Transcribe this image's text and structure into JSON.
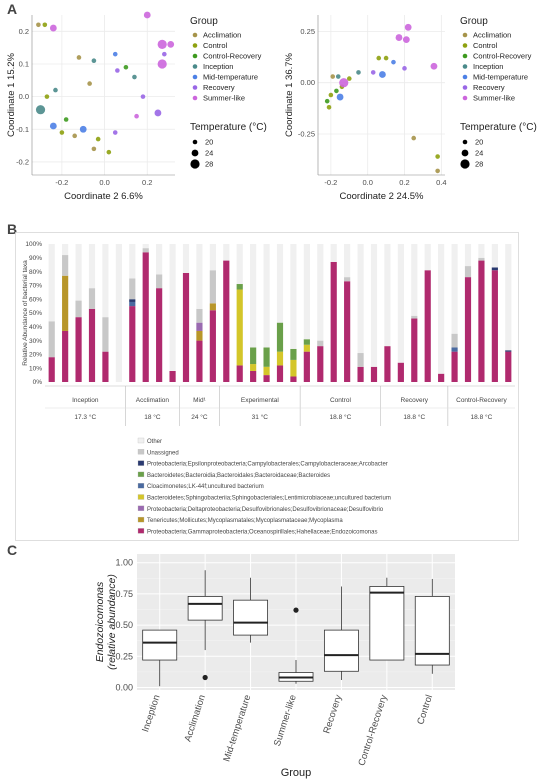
{
  "panel_labels": {
    "a": "A",
    "b": "B",
    "c": "C"
  },
  "legend_a": {
    "group_title": "Group",
    "temp_title": "Temperature (°C)",
    "groups": [
      {
        "name": "Acclimation",
        "color": "#a6944a"
      },
      {
        "name": "Control",
        "color": "#8ea10f"
      },
      {
        "name": "Control-Recovery",
        "color": "#3d9a1f"
      },
      {
        "name": "Inception",
        "color": "#4a8a8a"
      },
      {
        "name": "Mid-temperature",
        "color": "#4d80e6"
      },
      {
        "name": "Recovery",
        "color": "#9966e6"
      },
      {
        "name": "Summer-like",
        "color": "#cc66dd"
      }
    ],
    "temps": [
      "20",
      "24",
      "28"
    ]
  },
  "chart_data": [
    {
      "type": "scatter",
      "xlabel": "Coordinate 2 6.6%",
      "ylabel": "Coordinate 1 15.2%",
      "xticks": [
        "-0.2",
        "0.0",
        "0.2"
      ],
      "yticks": [
        "0.2",
        "0.1",
        "0.0",
        "-0.1",
        "-0.2"
      ],
      "xlim": [
        -0.34,
        0.33
      ],
      "ylim": [
        -0.24,
        0.25
      ],
      "grid": true,
      "points": [
        {
          "x": -0.31,
          "y": 0.22,
          "g": "Acclimation",
          "s": 1
        },
        {
          "x": -0.28,
          "y": 0.22,
          "g": "Control",
          "s": 1
        },
        {
          "x": -0.24,
          "y": 0.21,
          "g": "Summer-like",
          "s": 2
        },
        {
          "x": -0.27,
          "y": 0.0,
          "g": "Control",
          "s": 1
        },
        {
          "x": -0.23,
          "y": 0.02,
          "g": "Inception",
          "s": 1
        },
        {
          "x": -0.3,
          "y": -0.04,
          "g": "Inception",
          "s": 3
        },
        {
          "x": -0.18,
          "y": -0.07,
          "g": "Control-Recovery",
          "s": 1
        },
        {
          "x": -0.2,
          "y": -0.11,
          "g": "Control",
          "s": 1
        },
        {
          "x": -0.24,
          "y": -0.09,
          "g": "Mid-temperature",
          "s": 2
        },
        {
          "x": -0.1,
          "y": -0.1,
          "g": "Mid-temperature",
          "s": 2
        },
        {
          "x": -0.05,
          "y": -0.16,
          "g": "Acclimation",
          "s": 1
        },
        {
          "x": -0.03,
          "y": -0.13,
          "g": "Control",
          "s": 1
        },
        {
          "x": 0.02,
          "y": -0.17,
          "g": "Control",
          "s": 1
        },
        {
          "x": -0.12,
          "y": 0.12,
          "g": "Acclimation",
          "s": 1
        },
        {
          "x": -0.07,
          "y": 0.04,
          "g": "Acclimation",
          "s": 1
        },
        {
          "x": -0.05,
          "y": 0.11,
          "g": "Inception",
          "s": 1
        },
        {
          "x": 0.05,
          "y": 0.13,
          "g": "Mid-temperature",
          "s": 1
        },
        {
          "x": 0.06,
          "y": 0.08,
          "g": "Recovery",
          "s": 1
        },
        {
          "x": 0.1,
          "y": 0.09,
          "g": "Control-Recovery",
          "s": 1
        },
        {
          "x": 0.14,
          "y": 0.06,
          "g": "Inception",
          "s": 1
        },
        {
          "x": 0.15,
          "y": -0.06,
          "g": "Summer-like",
          "s": 1
        },
        {
          "x": 0.18,
          "y": 0.0,
          "g": "Recovery",
          "s": 1
        },
        {
          "x": 0.2,
          "y": 0.25,
          "g": "Summer-like",
          "s": 2
        },
        {
          "x": 0.27,
          "y": 0.16,
          "g": "Summer-like",
          "s": 3
        },
        {
          "x": 0.31,
          "y": 0.16,
          "g": "Summer-like",
          "s": 2
        },
        {
          "x": 0.27,
          "y": 0.1,
          "g": "Summer-like",
          "s": 3
        },
        {
          "x": 0.28,
          "y": 0.13,
          "g": "Recovery",
          "s": 1
        },
        {
          "x": 0.25,
          "y": -0.05,
          "g": "Recovery",
          "s": 2
        },
        {
          "x": 0.05,
          "y": -0.11,
          "g": "Recovery",
          "s": 1
        },
        {
          "x": -0.14,
          "y": -0.12,
          "g": "Acclimation",
          "s": 1
        }
      ]
    },
    {
      "type": "scatter",
      "xlabel": "Coordinate 2 24.5%",
      "ylabel": "Coordinate 1 36.7%",
      "xticks": [
        "-0.2",
        "0.0",
        "0.2",
        "0.4"
      ],
      "yticks": [
        "0.25",
        "0.00",
        "-0.25"
      ],
      "xlim": [
        -0.27,
        0.42
      ],
      "ylim": [
        -0.45,
        0.33
      ],
      "grid": true,
      "points": [
        {
          "x": -0.22,
          "y": -0.09,
          "g": "Control-Recovery",
          "s": 1
        },
        {
          "x": -0.21,
          "y": -0.12,
          "g": "Control",
          "s": 1
        },
        {
          "x": -0.2,
          "y": -0.06,
          "g": "Control",
          "s": 1
        },
        {
          "x": -0.19,
          "y": 0.03,
          "g": "Acclimation",
          "s": 1
        },
        {
          "x": -0.16,
          "y": 0.03,
          "g": "Inception",
          "s": 1
        },
        {
          "x": -0.17,
          "y": -0.04,
          "g": "Control-Recovery",
          "s": 1
        },
        {
          "x": -0.15,
          "y": -0.07,
          "g": "Mid-temperature",
          "s": 2
        },
        {
          "x": -0.14,
          "y": -0.02,
          "g": "Control",
          "s": 1
        },
        {
          "x": -0.13,
          "y": 0.0,
          "g": "Summer-like",
          "s": 3
        },
        {
          "x": -0.1,
          "y": 0.02,
          "g": "Control",
          "s": 1
        },
        {
          "x": -0.05,
          "y": 0.05,
          "g": "Inception",
          "s": 1
        },
        {
          "x": 0.03,
          "y": 0.05,
          "g": "Recovery",
          "s": 1
        },
        {
          "x": 0.08,
          "y": 0.04,
          "g": "Mid-temperature",
          "s": 2
        },
        {
          "x": 0.06,
          "y": 0.12,
          "g": "Control",
          "s": 1
        },
        {
          "x": 0.1,
          "y": 0.12,
          "g": "Control",
          "s": 1
        },
        {
          "x": 0.14,
          "y": 0.1,
          "g": "Mid-temperature",
          "s": 1
        },
        {
          "x": 0.17,
          "y": 0.22,
          "g": "Summer-like",
          "s": 2
        },
        {
          "x": 0.21,
          "y": 0.21,
          "g": "Summer-like",
          "s": 2
        },
        {
          "x": 0.22,
          "y": 0.27,
          "g": "Summer-like",
          "s": 2
        },
        {
          "x": 0.2,
          "y": 0.07,
          "g": "Recovery",
          "s": 1
        },
        {
          "x": 0.36,
          "y": 0.08,
          "g": "Summer-like",
          "s": 2
        },
        {
          "x": 0.25,
          "y": -0.27,
          "g": "Acclimation",
          "s": 1
        },
        {
          "x": 0.38,
          "y": -0.36,
          "g": "Control",
          "s": 1
        },
        {
          "x": 0.38,
          "y": -0.43,
          "g": "Acclimation",
          "s": 1
        }
      ]
    },
    {
      "type": "bar",
      "stacked": true,
      "ylabel": "Relative Abundance of bacterial taxa",
      "yticks": [
        "100%",
        "90%",
        "80%",
        "70%",
        "60%",
        "50%",
        "40%",
        "30%",
        "20%",
        "10%",
        "0%"
      ],
      "groups": [
        {
          "label": "Inception",
          "temp": "17.3 °C",
          "n": 6
        },
        {
          "label": "Acclimation",
          "temp": "18 °C",
          "n": 4
        },
        {
          "label": "Mid¹",
          "temp": "24 °C",
          "n": 3
        },
        {
          "label": "Experimental",
          "temp": "31 °C",
          "n": 6
        },
        {
          "label": "Control",
          "temp": "18.8 °C",
          "n": 6
        },
        {
          "label": "Recovery",
          "temp": "18.8 °C",
          "n": 5
        },
        {
          "label": "Control-Recovery",
          "temp": "18.8 °C",
          "n": 5
        }
      ],
      "taxa": [
        {
          "name": "Proteobacteria;Gammaproteobacteria;Oceanospirillales;Hahellaceae;Endozoicomonas",
          "color": "#b02a6e"
        },
        {
          "name": "Tenericutes;Mollicutes;Mycoplasmatales;Mycoplasmataceae;Mycoplasma",
          "color": "#b8962a"
        },
        {
          "name": "Proteobacteria;Deltaproteobacteria;Desulfovibrionales;Desulfovibrionaceae;Desulfovibrio",
          "color": "#9a6ab0"
        },
        {
          "name": "Bacteroidetes;Sphingobacteriia;Sphingobacteriales;Lentimicrobiaceae;uncultured bacterium",
          "color": "#d4c62a"
        },
        {
          "name": "Cloacimonetes;LK-44f;uncultured bacterium",
          "color": "#4a6aa0"
        },
        {
          "name": "Bacteroidetes;Bacteroidia;Bacteroidales;Bacteroidaceae;Bacteroides",
          "color": "#6aa04a"
        },
        {
          "name": "Proteobacteria;Epsilonproteobacteria;Campylobacterales;Campylobacteraceae;Arcobacter",
          "color": "#2a3a70"
        },
        {
          "name": "Unassigned",
          "color": "#c8c8c8"
        },
        {
          "name": "Other",
          "color": "#f0f0f0"
        }
      ],
      "bars": [
        {
          "v": [
            18,
            0,
            0,
            0,
            0,
            0,
            0,
            26
          ]
        },
        {
          "v": [
            37,
            40,
            0,
            0,
            0,
            0,
            0,
            15
          ]
        },
        {
          "v": [
            47,
            0,
            0,
            0,
            0,
            0,
            0,
            12
          ]
        },
        {
          "v": [
            53,
            0,
            0,
            0,
            0,
            0,
            0,
            15
          ]
        },
        {
          "v": [
            22,
            0,
            0,
            0,
            0,
            0,
            0,
            25
          ]
        },
        {
          "v": [
            0,
            0,
            0,
            0,
            0,
            0,
            0,
            0
          ]
        },
        {
          "v": [
            55,
            0,
            0,
            0,
            3,
            0,
            2,
            15
          ]
        },
        {
          "v": [
            94,
            0,
            0,
            0,
            0,
            0,
            0,
            3
          ]
        },
        {
          "v": [
            68,
            0,
            0,
            0,
            0,
            0,
            0,
            10
          ]
        },
        {
          "v": [
            8,
            0,
            0,
            0,
            0,
            0,
            0,
            0
          ]
        },
        {
          "v": [
            79,
            0,
            0,
            0,
            0,
            0,
            0,
            0
          ]
        },
        {
          "v": [
            30,
            7,
            6,
            0,
            0,
            0,
            0,
            10
          ]
        },
        {
          "v": [
            52,
            5,
            0,
            0,
            0,
            0,
            0,
            24
          ]
        },
        {
          "v": [
            88,
            0,
            0,
            0,
            0,
            0,
            0,
            0
          ]
        },
        {
          "v": [
            12,
            0,
            0,
            55,
            0,
            4,
            0,
            0
          ]
        },
        {
          "v": [
            8,
            0,
            0,
            5,
            0,
            12,
            0,
            0
          ]
        },
        {
          "v": [
            5,
            0,
            0,
            6,
            0,
            14,
            0,
            0
          ]
        },
        {
          "v": [
            12,
            0,
            0,
            10,
            0,
            21,
            0,
            0
          ]
        },
        {
          "v": [
            4,
            0,
            0,
            12,
            0,
            8,
            0,
            0
          ]
        },
        {
          "v": [
            22,
            0,
            0,
            5,
            0,
            4,
            0,
            0
          ]
        },
        {
          "v": [
            26,
            0,
            0,
            0,
            0,
            0,
            0,
            4
          ]
        },
        {
          "v": [
            87,
            0,
            0,
            0,
            0,
            0,
            0,
            0
          ]
        },
        {
          "v": [
            73,
            0,
            0,
            0,
            0,
            0,
            0,
            3
          ]
        },
        {
          "v": [
            11,
            0,
            0,
            0,
            0,
            0,
            0,
            10
          ]
        },
        {
          "v": [
            11,
            0,
            0,
            0,
            0,
            0,
            0,
            0
          ]
        },
        {
          "v": [
            26,
            0,
            0,
            0,
            0,
            0,
            0,
            0
          ]
        },
        {
          "v": [
            14,
            0,
            0,
            0,
            0,
            0,
            0,
            0
          ]
        },
        {
          "v": [
            46,
            0,
            0,
            0,
            0,
            0,
            0,
            2
          ]
        },
        {
          "v": [
            81,
            0,
            0,
            0,
            0,
            0,
            0,
            0
          ]
        },
        {
          "v": [
            6,
            0,
            0,
            0,
            0,
            0,
            0,
            0
          ]
        },
        {
          "v": [
            22,
            0,
            0,
            0,
            3,
            0,
            0,
            10
          ]
        },
        {
          "v": [
            76,
            0,
            0,
            0,
            0,
            0,
            0,
            8
          ]
        },
        {
          "v": [
            88,
            0,
            0,
            0,
            0,
            0,
            0,
            2
          ]
        },
        {
          "v": [
            81,
            0,
            0,
            0,
            0,
            0,
            2,
            0
          ]
        },
        {
          "v": [
            22,
            0,
            0,
            0,
            0,
            0,
            1,
            0
          ]
        }
      ]
    },
    {
      "type": "box",
      "xlabel": "Group",
      "ylabel": "Endozoicomonas\n(relative abundance)",
      "ylim": [
        -0.02,
        1.07
      ],
      "yticks": [
        "1.00",
        "0.75",
        "0.50",
        "0.25",
        "0.00"
      ],
      "categories": [
        "Inception",
        "Acclimation",
        "Mid-temperature",
        "Summer-like",
        "Recovery",
        "Control-Recovery",
        "Control"
      ],
      "boxes": [
        {
          "min": 0.01,
          "q1": 0.22,
          "med": 0.36,
          "q3": 0.46,
          "max": 0.46,
          "out": []
        },
        {
          "min": 0.3,
          "q1": 0.54,
          "med": 0.67,
          "q3": 0.73,
          "max": 0.94,
          "out": [
            0.08
          ]
        },
        {
          "min": 0.36,
          "q1": 0.42,
          "med": 0.52,
          "q3": 0.7,
          "max": 0.88,
          "out": []
        },
        {
          "min": 0.03,
          "q1": 0.05,
          "med": 0.08,
          "q3": 0.12,
          "max": 0.22,
          "out": [
            0.62
          ]
        },
        {
          "min": 0.06,
          "q1": 0.13,
          "med": 0.26,
          "q3": 0.46,
          "max": 0.81,
          "out": []
        },
        {
          "min": 0.22,
          "q1": 0.22,
          "med": 0.76,
          "q3": 0.81,
          "max": 0.88,
          "out": []
        },
        {
          "min": 0.11,
          "q1": 0.18,
          "med": 0.27,
          "q3": 0.73,
          "max": 0.87,
          "out": []
        }
      ]
    }
  ]
}
